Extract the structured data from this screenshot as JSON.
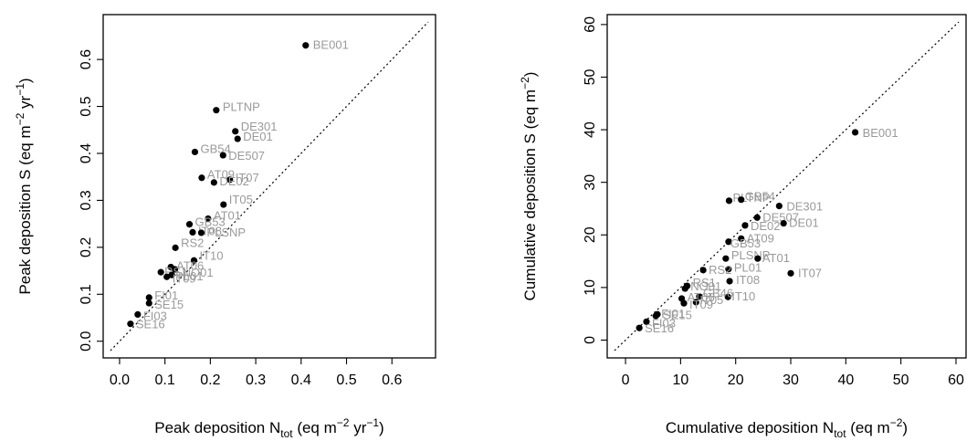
{
  "chart_data": [
    {
      "type": "scatter",
      "xlabel": {
        "pre": "Peak deposition N",
        "sub": "tot",
        "post": " (eq m",
        "sup1": "−2",
        "mid": " yr",
        "sup2": "−1",
        "end": ")"
      },
      "ylabel": {
        "pre": "Peak deposition S (eq m",
        "sup1": "−2",
        "mid": " yr",
        "sup2": "−1",
        "end": ")"
      },
      "xlim": [
        -0.02,
        0.68
      ],
      "ylim": [
        -0.02,
        0.68
      ],
      "xticks": [
        "0.0",
        "0.1",
        "0.2",
        "0.3",
        "0.4",
        "0.5",
        "0.6"
      ],
      "yticks": [
        "0.0",
        "0.1",
        "0.2",
        "0.3",
        "0.4",
        "0.5",
        "0.6"
      ],
      "reference_line": "y = x",
      "points": [
        {
          "label": "BE001",
          "x": 0.41,
          "y": 0.63
        },
        {
          "label": "PLTNP",
          "x": 0.213,
          "y": 0.492
        },
        {
          "label": "DE301",
          "x": 0.255,
          "y": 0.447
        },
        {
          "label": "DE01",
          "x": 0.26,
          "y": 0.431
        },
        {
          "label": "GB54",
          "x": 0.166,
          "y": 0.403
        },
        {
          "label": "DE507",
          "x": 0.228,
          "y": 0.396
        },
        {
          "label": "AT09",
          "x": 0.181,
          "y": 0.348
        },
        {
          "label": "IT07",
          "x": 0.243,
          "y": 0.344
        },
        {
          "label": "DE02",
          "x": 0.208,
          "y": 0.338
        },
        {
          "label": "IT05",
          "x": 0.229,
          "y": 0.291
        },
        {
          "label": "AT01",
          "x": 0.195,
          "y": 0.261
        },
        {
          "label": "GB53",
          "x": 0.154,
          "y": 0.249
        },
        {
          "label": "IT08",
          "x": 0.161,
          "y": 0.232
        },
        {
          "label": "PLSNP",
          "x": 0.18,
          "y": 0.231
        },
        {
          "label": "RS2",
          "x": 0.123,
          "y": 0.199
        },
        {
          "label": "IT10",
          "x": 0.164,
          "y": 0.172
        },
        {
          "label": "AT06",
          "x": 0.113,
          "y": 0.158
        },
        {
          "label": "NO01",
          "x": 0.122,
          "y": 0.153
        },
        {
          "label": "RS1",
          "x": 0.091,
          "y": 0.147
        },
        {
          "label": "PL01",
          "x": 0.115,
          "y": 0.141
        },
        {
          "label": "IT09",
          "x": 0.104,
          "y": 0.137
        },
        {
          "label": "FI01",
          "x": 0.065,
          "y": 0.093
        },
        {
          "label": "SE15",
          "x": 0.065,
          "y": 0.081
        },
        {
          "label": "FI03",
          "x": 0.04,
          "y": 0.057
        },
        {
          "label": "SE16",
          "x": 0.024,
          "y": 0.037
        }
      ]
    },
    {
      "type": "scatter",
      "xlabel": {
        "pre": "Cumulative deposition N",
        "sub": "tot",
        "post": " (eq m",
        "sup1": "−2",
        "end": ")"
      },
      "ylabel": {
        "pre": "Cumulative deposition S (eq m",
        "sup1": "−2",
        "end": ")"
      },
      "xlim": [
        -2,
        60.5
      ],
      "ylim": [
        -2,
        60.5
      ],
      "xticks": [
        "0",
        "10",
        "20",
        "30",
        "40",
        "50",
        "60"
      ],
      "yticks": [
        "0",
        "10",
        "20",
        "30",
        "40",
        "50",
        "60"
      ],
      "reference_line": "y = x",
      "points": [
        {
          "label": "BE001",
          "x": 41.7,
          "y": 39.5
        },
        {
          "label": "PLTNP",
          "x": 18.8,
          "y": 26.5
        },
        {
          "label": "GB54",
          "x": 21.0,
          "y": 26.7
        },
        {
          "label": "DE301",
          "x": 27.9,
          "y": 25.5
        },
        {
          "label": "DE507",
          "x": 23.9,
          "y": 23.3
        },
        {
          "label": "DE01",
          "x": 28.7,
          "y": 22.2
        },
        {
          "label": "DE02",
          "x": 21.7,
          "y": 21.8
        },
        {
          "label": "AT09",
          "x": 21.0,
          "y": 19.3
        },
        {
          "label": "GB53",
          "x": 18.7,
          "y": 18.7
        },
        {
          "label": "PLSNP",
          "x": 18.2,
          "y": 15.5
        },
        {
          "label": "AT01",
          "x": 24.0,
          "y": 15.5
        },
        {
          "label": "PL01",
          "x": 18.7,
          "y": 13.5
        },
        {
          "label": "RS2",
          "x": 14.1,
          "y": 13.3
        },
        {
          "label": "IT07",
          "x": 30.0,
          "y": 12.7
        },
        {
          "label": "IT08",
          "x": 18.9,
          "y": 11.2
        },
        {
          "label": "RS1",
          "x": 11.2,
          "y": 10.3
        },
        {
          "label": "NO01",
          "x": 10.8,
          "y": 9.8
        },
        {
          "label": "IT10",
          "x": 18.6,
          "y": 8.2
        },
        {
          "label": "GB46",
          "x": 13.4,
          "y": 8.3
        },
        {
          "label": "AT06",
          "x": 10.2,
          "y": 7.9
        },
        {
          "label": "IT05",
          "x": 12.8,
          "y": 7.2
        },
        {
          "label": "IT09",
          "x": 10.6,
          "y": 7.0
        },
        {
          "label": "SE15",
          "x": 5.8,
          "y": 4.9
        },
        {
          "label": "FI01",
          "x": 5.5,
          "y": 4.6
        },
        {
          "label": "FI03",
          "x": 3.8,
          "y": 3.5
        },
        {
          "label": "SE16",
          "x": 2.5,
          "y": 2.3
        }
      ]
    }
  ]
}
